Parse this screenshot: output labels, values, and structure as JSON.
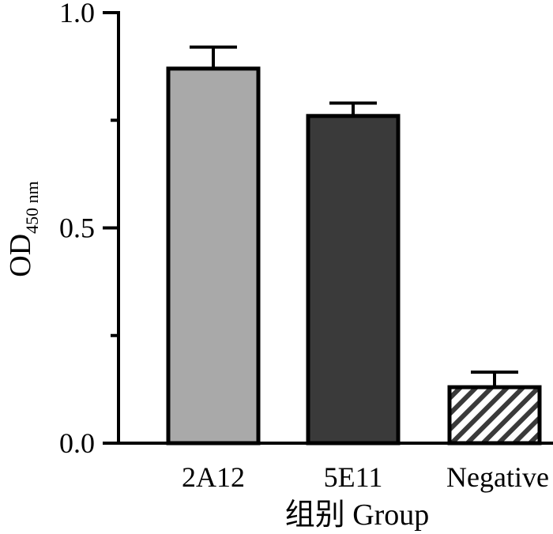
{
  "chart_data": {
    "type": "bar",
    "categories": [
      "2A12",
      "5E11",
      "Negative"
    ],
    "values": [
      0.87,
      0.76,
      0.13
    ],
    "errors": [
      0.05,
      0.03,
      0.035
    ],
    "ylim": [
      0.0,
      1.0
    ],
    "yticks": [
      "0.0",
      "0.5",
      "1.0"
    ],
    "xlabel": "组别 Group",
    "ylabel_main": "OD",
    "ylabel_sub": "450 nm",
    "grid": false,
    "legend": "none",
    "bar_colors": [
      "#a9a9a9",
      "#3a3a3a",
      "hatch"
    ]
  }
}
